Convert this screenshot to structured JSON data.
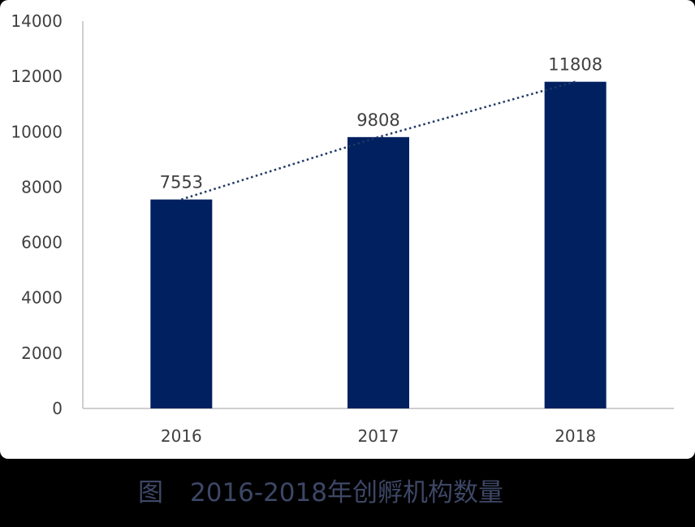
{
  "chart_data": {
    "type": "bar",
    "categories": [
      "2016",
      "2017",
      "2018"
    ],
    "values": [
      7553,
      9808,
      11808
    ],
    "data_labels": [
      "7553",
      "9808",
      "11808"
    ],
    "ylim": [
      0,
      14000
    ],
    "yticks": [
      "0",
      "2000",
      "4000",
      "6000",
      "8000",
      "10000",
      "12000",
      "14000"
    ],
    "grid": false,
    "trendline": "dotted",
    "bar_color": "#002060",
    "trend_color": "#1f3864",
    "axis_color": "#bfbfbf"
  },
  "caption": {
    "prefix": "图",
    "text": "2016-2018年创孵机构数量"
  }
}
